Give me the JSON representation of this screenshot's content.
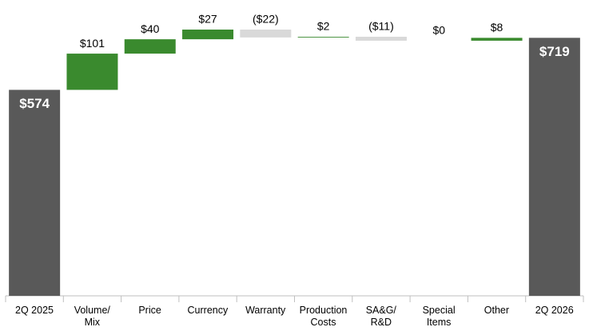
{
  "chart_data": {
    "type": "waterfall",
    "categories": [
      "2Q 2025",
      "Volume/\nMix",
      "Price",
      "Currency",
      "Warranty",
      "Production\nCosts",
      "SA&G/\nR&D",
      "Special\nItems",
      "Other",
      "2Q 2026"
    ],
    "values": [
      574,
      101,
      40,
      27,
      -22,
      2,
      -11,
      0,
      8,
      719
    ],
    "value_labels": [
      "$574",
      "$101",
      "$40",
      "$27",
      "($22)",
      "$2",
      "($11)",
      "$0",
      "$8",
      "$719"
    ],
    "total_color": "#595959",
    "increase_color": "#3a8a2e",
    "decrease_color": "#d9d9d9"
  }
}
